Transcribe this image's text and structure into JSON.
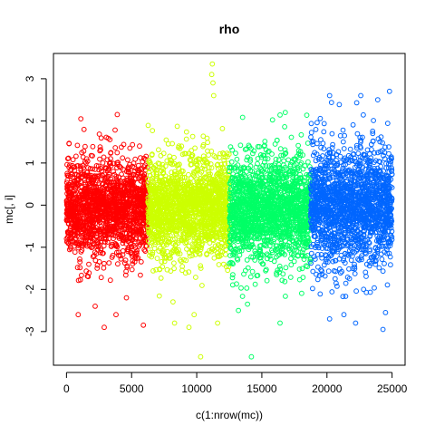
{
  "chart_data": {
    "type": "scatter",
    "title": "rho",
    "xlabel": "c(1:nrow(mc))",
    "ylabel": "mc[, i]",
    "xlim": [
      -1000,
      26000
    ],
    "ylim": [
      -3.8,
      3.6
    ],
    "x_ticks": [
      0,
      5000,
      10000,
      15000,
      20000,
      25000
    ],
    "y_ticks": [
      -3,
      -2,
      -1,
      0,
      1,
      2,
      3
    ],
    "x_tick_labels": [
      "0",
      "5000",
      "10000",
      "15000",
      "20000",
      "25000"
    ],
    "y_tick_labels": [
      "-3",
      "-2",
      "-1",
      "0",
      "1",
      "2",
      "3"
    ],
    "marker": "open-circle",
    "series": [
      {
        "color": "#ff0000",
        "x_range": [
          1,
          6250
        ],
        "y_center": -0.1,
        "y_typical_range": [
          -1.9,
          2.1
        ],
        "outliers": [
          [
            900,
            -2.6
          ],
          [
            2900,
            -2.9
          ],
          [
            3800,
            -2.6
          ],
          [
            5900,
            -2.85
          ],
          [
            3900,
            2.15
          ],
          [
            1100,
            2.05
          ],
          [
            2200,
            -2.4
          ],
          [
            4600,
            -2.2
          ]
        ]
      },
      {
        "color": "#ccff00",
        "x_range": [
          6251,
          12500
        ],
        "y_center": -0.05,
        "y_typical_range": [
          -2.3,
          1.9
        ],
        "outliers": [
          [
            10300,
            -3.6
          ],
          [
            11200,
            3.35
          ],
          [
            11150,
            3.1
          ],
          [
            11250,
            2.9
          ],
          [
            11300,
            2.6
          ],
          [
            9400,
            -2.9
          ],
          [
            8300,
            -2.8
          ],
          [
            11600,
            -2.8
          ],
          [
            9800,
            -2.6
          ]
        ]
      },
      {
        "color": "#00ff66",
        "x_range": [
          12501,
          18750
        ],
        "y_center": -0.1,
        "y_typical_range": [
          -2.2,
          2.2
        ],
        "outliers": [
          [
            14200,
            -3.6
          ],
          [
            16400,
            -2.8
          ],
          [
            13200,
            -2.5
          ],
          [
            13900,
            -2.35
          ],
          [
            16800,
            2.2
          ]
        ]
      },
      {
        "color": "#0066ff",
        "x_range": [
          18751,
          25000
        ],
        "y_center": 0.0,
        "y_typical_range": [
          -2.2,
          2.7
        ],
        "outliers": [
          [
            24300,
            -2.95
          ],
          [
            20200,
            -2.7
          ],
          [
            21300,
            -2.6
          ],
          [
            24500,
            -2.55
          ],
          [
            24800,
            2.7
          ],
          [
            20200,
            2.6
          ],
          [
            22600,
            2.6
          ],
          [
            23900,
            2.5
          ],
          [
            22200,
            -2.8
          ]
        ]
      }
    ]
  }
}
